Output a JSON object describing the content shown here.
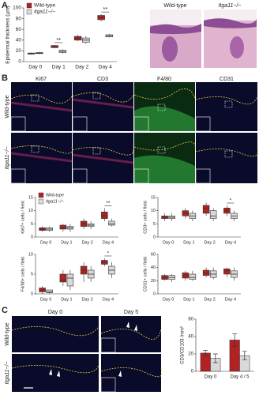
{
  "panels": {
    "a": "A",
    "b": "B",
    "c": "C"
  },
  "images": {
    "a_titles": [
      "Wild-type",
      "Itga11−/−"
    ],
    "b_columns": [
      "Ki67",
      "CD3",
      "F4/80",
      "CD31"
    ],
    "b_rows": [
      "Wild-type",
      "Itga11−/−"
    ],
    "c_columns": [
      "Day 0",
      "Day 5"
    ],
    "c_rows": [
      "Wild-type",
      "Itga11−/−"
    ]
  },
  "chart_data": [
    {
      "type": "box",
      "ylabel": "Epidermal thickness (µm)",
      "categories": [
        "Day 0",
        "Day 1",
        "Day 2",
        "Day 4"
      ],
      "series": [
        {
          "name": "Wild-type",
          "color": "#b22222",
          "values": [
            [
              13,
              14,
              15,
              16,
              17
            ],
            [
              25,
              26,
              28,
              30,
              31
            ],
            [
              38,
              40,
              44,
              47,
              50
            ],
            [
              75,
              78,
              82,
              86,
              88
            ]
          ]
        },
        {
          "name": "Itga11−/−",
          "color": "#d9d9d9",
          "values": [
            [
              14,
              15,
              16,
              17,
              18
            ],
            [
              15,
              17,
              19,
              21,
              23
            ],
            [
              33,
              36,
              40,
              44,
              48
            ],
            [
              45,
              46,
              48,
              50,
              52
            ]
          ]
        }
      ],
      "ylim": [
        0,
        100
      ],
      "yticks": [
        0,
        20,
        40,
        60,
        80,
        100
      ],
      "significance": [
        null,
        "**",
        null,
        "**"
      ],
      "legend": "upper left"
    },
    {
      "type": "box",
      "ylabel": "Ki67+ cells / field",
      "categories": [
        "Day 0",
        "Day 1",
        "Day 2",
        "Day 4"
      ],
      "series": [
        {
          "name": "Wild-type",
          "color": "#b22222",
          "values": [
            [
              2,
              2.5,
              3,
              3.5,
              4
            ],
            [
              2,
              3,
              3.5,
              4.5,
              5
            ],
            [
              3,
              4,
              5,
              6,
              7
            ],
            [
              6,
              7,
              8,
              9.5,
              11
            ]
          ]
        },
        {
          "name": "Itga11−/−",
          "color": "#d9d9d9",
          "values": [
            [
              2,
              2.5,
              3,
              3.5,
              4
            ],
            [
              2,
              3,
              3.5,
              4,
              5
            ],
            [
              3,
              4,
              4.5,
              5,
              6
            ],
            [
              4,
              4.5,
              5,
              6,
              7
            ]
          ]
        }
      ],
      "ylim": [
        0,
        15
      ],
      "yticks": [
        0,
        5,
        10,
        15
      ],
      "significance": [
        null,
        null,
        null,
        "**"
      ],
      "legend": "upper left"
    },
    {
      "type": "box",
      "ylabel": "CD3+ cells / field",
      "categories": [
        "Day 0",
        "Day 1",
        "Day 2",
        "Day 4"
      ],
      "series": [
        {
          "color": "#b22222",
          "values": [
            [
              6,
              7,
              7.5,
              8,
              9
            ],
            [
              7,
              8,
              9,
              10,
              11
            ],
            [
              8,
              9,
              11,
              12,
              13
            ],
            [
              8,
              9,
              10,
              11,
              12
            ]
          ]
        },
        {
          "color": "#d9d9d9",
          "values": [
            [
              6,
              7,
              7.5,
              8,
              9
            ],
            [
              6,
              7,
              8,
              9,
              10
            ],
            [
              6,
              7,
              8,
              10,
              11
            ],
            [
              6,
              7,
              8,
              9,
              10
            ]
          ]
        }
      ],
      "ylim": [
        0,
        15
      ],
      "yticks": [
        0,
        5,
        10,
        15
      ],
      "significance": [
        null,
        null,
        null,
        "*"
      ]
    },
    {
      "type": "box",
      "ylabel": "F4/80+ cells / field",
      "categories": [
        "Day 0",
        "Day 1",
        "Day 2",
        "Day 4"
      ],
      "series": [
        {
          "color": "#b22222",
          "values": [
            [
              0,
              0.5,
              1,
              1.5,
              2
            ],
            [
              2,
              3,
              3.5,
              5,
              6
            ],
            [
              3,
              5,
              6,
              7,
              8
            ],
            [
              7,
              7.5,
              8,
              8.5,
              9
            ]
          ]
        },
        {
          "color": "#d9d9d9",
          "values": [
            [
              0,
              0.3,
              0.5,
              1,
              1
            ],
            [
              1,
              2,
              4,
              5,
              6
            ],
            [
              3,
              4,
              5,
              6,
              7
            ],
            [
              4,
              5,
              6,
              7,
              8
            ]
          ]
        }
      ],
      "ylim": [
        0,
        10
      ],
      "yticks": [
        0,
        5,
        10
      ],
      "significance": [
        null,
        null,
        null,
        "*"
      ]
    },
    {
      "type": "box",
      "ylabel": "CD31+ cells / field",
      "categories": [
        "Day 0",
        "Day 1",
        "Day 2",
        "Day 4"
      ],
      "series": [
        {
          "color": "#b22222",
          "values": [
            [
              20,
              22,
              25,
              28,
              30
            ],
            [
              20,
              24,
              28,
              32,
              35
            ],
            [
              25,
              28,
              32,
              36,
              40
            ],
            [
              25,
              30,
              35,
              38,
              40
            ]
          ]
        },
        {
          "color": "#d9d9d9",
          "values": [
            [
              18,
              22,
              25,
              28,
              30
            ],
            [
              20,
              22,
              25,
              30,
              35
            ],
            [
              22,
              25,
              30,
              35,
              40
            ],
            [
              20,
              25,
              30,
              35,
              40
            ]
          ]
        }
      ],
      "ylim": [
        0,
        60
      ],
      "yticks": [
        0,
        20,
        40,
        60
      ]
    },
    {
      "type": "bar",
      "ylabel": "CD3/CD103 /mm²",
      "categories": [
        "Day 0",
        "Day 4 / 5"
      ],
      "series": [
        {
          "color": "#b22222",
          "values": [
            21,
            36
          ],
          "errors": [
            3,
            7
          ]
        },
        {
          "color": "#d9d9d9",
          "values": [
            15,
            18
          ],
          "errors": [
            5,
            5
          ]
        }
      ],
      "ylim": [
        0,
        60
      ],
      "yticks": [
        0,
        20,
        40,
        60
      ]
    }
  ]
}
